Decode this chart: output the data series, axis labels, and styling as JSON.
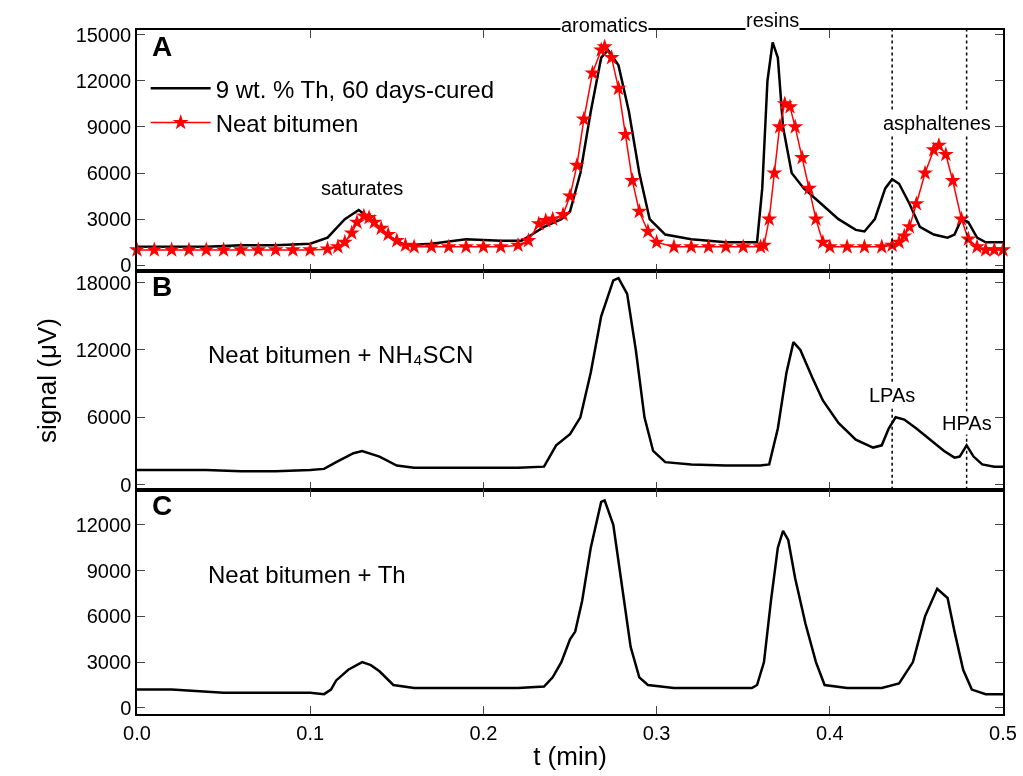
{
  "chart_data": [
    {
      "type": "line",
      "xlim": [
        0,
        0.5
      ],
      "xticks": [
        0,
        0.1,
        0.2,
        0.3,
        0.4,
        0.5
      ],
      "ylim": [
        -400,
        15300
      ],
      "yticks": [
        0,
        3000,
        6000,
        9000,
        12000,
        15000
      ],
      "tick_labels": "y",
      "grid": false,
      "legend": "top left",
      "series": [
        {
          "name": "9 wt. % Th, 60 days-cured",
          "color": "#000000",
          "x": [
            0,
            0.02,
            0.04,
            0.06,
            0.08,
            0.1,
            0.11,
            0.12,
            0.128,
            0.135,
            0.145,
            0.155,
            0.17,
            0.19,
            0.21,
            0.222,
            0.228,
            0.235,
            0.245,
            0.25,
            0.256,
            0.262,
            0.268,
            0.272,
            0.278,
            0.284,
            0.29,
            0.296,
            0.305,
            0.32,
            0.34,
            0.358,
            0.361,
            0.364,
            0.367,
            0.37,
            0.373,
            0.378,
            0.385,
            0.395,
            0.405,
            0.415,
            0.42,
            0.426,
            0.432,
            0.436,
            0.44,
            0.446,
            0.452,
            0.46,
            0.468,
            0.472,
            0.476,
            0.48,
            0.485,
            0.49,
            0.5
          ],
          "values": [
            1200,
            1200,
            1200,
            1300,
            1300,
            1400,
            1800,
            3000,
            3600,
            3000,
            1900,
            1300,
            1400,
            1700,
            1600,
            1600,
            2000,
            2500,
            3000,
            3500,
            6000,
            10000,
            13500,
            14000,
            13000,
            10000,
            6000,
            3000,
            2000,
            1700,
            1500,
            1500,
            5000,
            12000,
            14500,
            13500,
            9000,
            6000,
            5000,
            4000,
            3000,
            2300,
            2200,
            3000,
            5000,
            5600,
            5300,
            4000,
            2500,
            2000,
            1800,
            2000,
            3000,
            2800,
            1800,
            1500,
            1500
          ]
        },
        {
          "name": "Neat bitumen",
          "color": "#ff0000",
          "marker": "star",
          "x": [
            0,
            0.01,
            0.02,
            0.03,
            0.04,
            0.05,
            0.06,
            0.07,
            0.08,
            0.09,
            0.1,
            0.11,
            0.116,
            0.12,
            0.124,
            0.127,
            0.131,
            0.134,
            0.137,
            0.141,
            0.145,
            0.15,
            0.155,
            0.16,
            0.17,
            0.18,
            0.19,
            0.2,
            0.21,
            0.22,
            0.226,
            0.232,
            0.236,
            0.24,
            0.246,
            0.25,
            0.254,
            0.258,
            0.263,
            0.268,
            0.27,
            0.274,
            0.278,
            0.282,
            0.286,
            0.29,
            0.295,
            0.3,
            0.31,
            0.32,
            0.33,
            0.34,
            0.35,
            0.36,
            0.362,
            0.365,
            0.368,
            0.371,
            0.374,
            0.377,
            0.38,
            0.384,
            0.388,
            0.392,
            0.396,
            0.4,
            0.41,
            0.42,
            0.43,
            0.436,
            0.44,
            0.443,
            0.446,
            0.45,
            0.455,
            0.46,
            0.463,
            0.467,
            0.471,
            0.476,
            0.48,
            0.485,
            0.49,
            0.495,
            0.5
          ],
          "values": [
            1000,
            1000,
            1000,
            1000,
            1000,
            1000,
            1000,
            1000,
            1000,
            1000,
            1000,
            1050,
            1200,
            1500,
            2100,
            2800,
            3200,
            3100,
            2800,
            2400,
            2000,
            1600,
            1300,
            1200,
            1200,
            1200,
            1200,
            1200,
            1200,
            1300,
            1600,
            2700,
            2900,
            3000,
            3300,
            4500,
            6500,
            9500,
            12500,
            14000,
            14200,
            13500,
            11500,
            8500,
            5500,
            3500,
            2200,
            1500,
            1200,
            1200,
            1200,
            1200,
            1200,
            1200,
            1300,
            3000,
            6000,
            9000,
            10500,
            10300,
            9000,
            7000,
            5000,
            3000,
            1500,
            1200,
            1200,
            1200,
            1200,
            1300,
            1500,
            1900,
            2500,
            4000,
            6000,
            7500,
            7800,
            7200,
            5500,
            3000,
            1700,
            1200,
            1000,
            1000,
            1000
          ]
        }
      ],
      "ref_lines": [
        {
          "axis": "x",
          "value": 0.436,
          "color": "#000000",
          "line_style": "dotted"
        },
        {
          "axis": "x",
          "value": 0.479,
          "color": "#000000",
          "line_style": "dotted"
        }
      ],
      "annotations": [
        "A",
        {
          "text": "saturates",
          "x": 0.13,
          "y": 3600
        },
        {
          "text": "aromatics",
          "x": 0.27,
          "y": 14200
        },
        {
          "text": "resins",
          "x": 0.367,
          "y": 14500
        },
        {
          "text": "asphaltenes",
          "x": 0.462,
          "y": 7800
        }
      ]
    },
    {
      "type": "line",
      "xlim": [
        0,
        0.5
      ],
      "xticks": [
        0,
        0.1,
        0.2,
        0.3,
        0.4,
        0.5
      ],
      "ylim": [
        -450,
        19000
      ],
      "yticks": [
        0,
        6000,
        12000,
        18000
      ],
      "tick_labels": "y",
      "grid": false,
      "ylabel": "signal (μV)",
      "series": [
        {
          "color": "#000000",
          "x": [
            0,
            0.02,
            0.04,
            0.06,
            0.08,
            0.1,
            0.108,
            0.115,
            0.125,
            0.13,
            0.14,
            0.15,
            0.16,
            0.18,
            0.2,
            0.22,
            0.235,
            0.242,
            0.25,
            0.256,
            0.262,
            0.268,
            0.275,
            0.278,
            0.283,
            0.288,
            0.293,
            0.298,
            0.305,
            0.32,
            0.34,
            0.36,
            0.365,
            0.37,
            0.375,
            0.379,
            0.383,
            0.39,
            0.396,
            0.405,
            0.415,
            0.425,
            0.43,
            0.434,
            0.438,
            0.443,
            0.45,
            0.458,
            0.466,
            0.472,
            0.475,
            0.479,
            0.483,
            0.488,
            0.495,
            0.5
          ],
          "values": [
            1300,
            1300,
            1300,
            1200,
            1200,
            1300,
            1400,
            2000,
            2800,
            3000,
            2500,
            1700,
            1500,
            1500,
            1500,
            1500,
            1600,
            3500,
            4500,
            6000,
            10000,
            15000,
            18200,
            18400,
            17000,
            12000,
            6000,
            3000,
            2000,
            1800,
            1700,
            1700,
            1800,
            5000,
            10000,
            12700,
            12000,
            9500,
            7500,
            5500,
            4000,
            3300,
            3500,
            5000,
            6000,
            5800,
            5000,
            4000,
            3000,
            2400,
            2500,
            3500,
            2500,
            1800,
            1600,
            1600
          ]
        }
      ],
      "ref_lines": [
        {
          "axis": "x",
          "value": 0.436,
          "color": "#000000",
          "line_style": "dotted"
        },
        {
          "axis": "x",
          "value": 0.479,
          "color": "#000000",
          "line_style": "dotted"
        }
      ],
      "annotations": [
        "B",
        "Neat bitumen + NH₄SCN",
        {
          "text": "LPAs",
          "x": 0.436,
          "y": 6000
        },
        {
          "text": "HPAs",
          "x": 0.479,
          "y": 3500
        }
      ]
    },
    {
      "type": "line",
      "xlim": [
        0,
        0.5
      ],
      "xticks": [
        {
          "value": 0,
          "label": "0.0"
        },
        0.1,
        0.2,
        0.3,
        0.4,
        0.5
      ],
      "ylim": [
        -400,
        14300
      ],
      "yticks": [
        0,
        3000,
        6000,
        9000,
        12000
      ],
      "grid": false,
      "xlabel": "t (min)",
      "series": [
        {
          "color": "#000000",
          "x": [
            0,
            0.02,
            0.05,
            0.08,
            0.1,
            0.108,
            0.112,
            0.115,
            0.122,
            0.13,
            0.135,
            0.14,
            0.148,
            0.16,
            0.18,
            0.2,
            0.22,
            0.235,
            0.24,
            0.245,
            0.25,
            0.253,
            0.257,
            0.262,
            0.268,
            0.27,
            0.275,
            0.28,
            0.285,
            0.29,
            0.295,
            0.31,
            0.33,
            0.355,
            0.358,
            0.362,
            0.366,
            0.37,
            0.373,
            0.376,
            0.38,
            0.386,
            0.392,
            0.397,
            0.41,
            0.43,
            0.44,
            0.448,
            0.455,
            0.462,
            0.468,
            0.472,
            0.477,
            0.482,
            0.49,
            0.5
          ],
          "values": [
            1200,
            1200,
            1000,
            1000,
            1000,
            900,
            1200,
            1800,
            2500,
            3000,
            2800,
            2400,
            1500,
            1300,
            1300,
            1300,
            1300,
            1400,
            2000,
            3000,
            4500,
            5000,
            7000,
            10500,
            13500,
            13600,
            12000,
            8000,
            4000,
            2000,
            1500,
            1300,
            1300,
            1300,
            1500,
            3000,
            7000,
            10500,
            11600,
            11000,
            8500,
            5500,
            3000,
            1500,
            1300,
            1300,
            1600,
            3000,
            6000,
            7800,
            7200,
            5000,
            2500,
            1200,
            900,
            900
          ]
        }
      ],
      "annotations": [
        "C",
        "Neat bitumen + Th"
      ]
    }
  ]
}
